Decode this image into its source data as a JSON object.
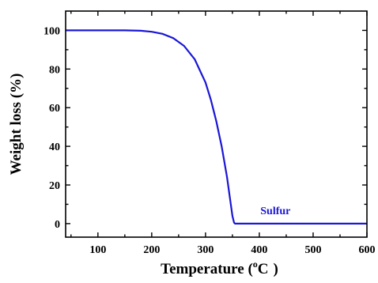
{
  "chart_data": {
    "type": "line",
    "xlabel": "Temperature (",
    "xlabel_unit": "C",
    "xlabel_sup": "o",
    "xlabel_close": ")",
    "ylabel": "Weight loss (%)",
    "xlim": [
      40,
      600
    ],
    "ylim": [
      -7,
      110
    ],
    "x_ticks": [
      100,
      200,
      300,
      400,
      500,
      600
    ],
    "y_ticks": [
      0,
      20,
      40,
      60,
      80,
      100
    ],
    "grid": false,
    "series": [
      {
        "name": "Sulfur",
        "color": "#1a16d6",
        "x": [
          40,
          100,
          150,
          180,
          200,
          220,
          240,
          260,
          280,
          300,
          310,
          320,
          330,
          340,
          345,
          350,
          353,
          355,
          400,
          450,
          500,
          550,
          600
        ],
        "y": [
          100,
          100,
          100,
          99.8,
          99.3,
          98.2,
          96,
          92,
          85,
          73,
          64,
          53,
          40,
          24,
          14,
          4,
          0.5,
          0,
          0,
          0,
          0,
          0,
          0
        ]
      }
    ],
    "annotations": [
      {
        "text": "Sulfur",
        "x": 430,
        "y": 7,
        "color": "#1a16d6"
      }
    ]
  }
}
